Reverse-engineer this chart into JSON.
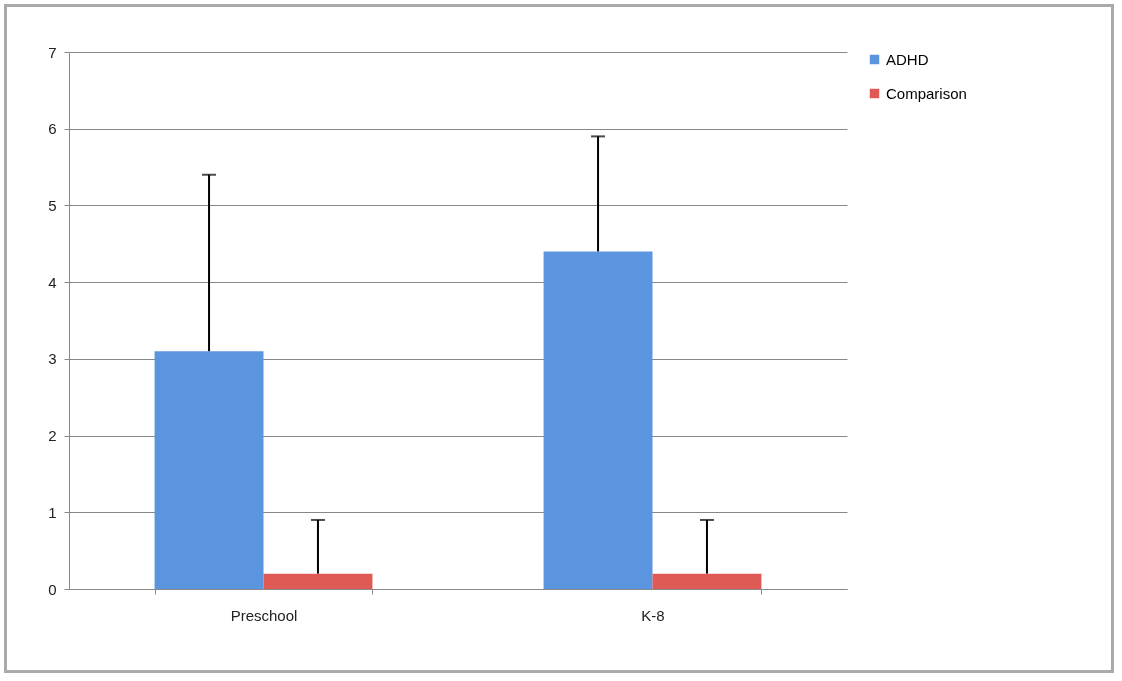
{
  "chart_data": {
    "type": "bar",
    "categories": [
      "Preschool",
      "K-8"
    ],
    "series": [
      {
        "name": "ADHD",
        "color": "#5b95e0",
        "values": [
          3.1,
          4.4
        ],
        "errors": [
          [
            3.1,
            5.4
          ],
          [
            4.4,
            5.9
          ]
        ]
      },
      {
        "name": "Comparison",
        "color": "#e05a55",
        "values": [
          0.2,
          0.2
        ],
        "errors": [
          [
            0.2,
            0.9
          ],
          [
            0.2,
            0.9
          ]
        ]
      }
    ],
    "ylim": [
      0,
      7
    ],
    "yticks": [
      0,
      1,
      2,
      3,
      4,
      5,
      6,
      7
    ],
    "grid": "y",
    "legend": "right"
  }
}
